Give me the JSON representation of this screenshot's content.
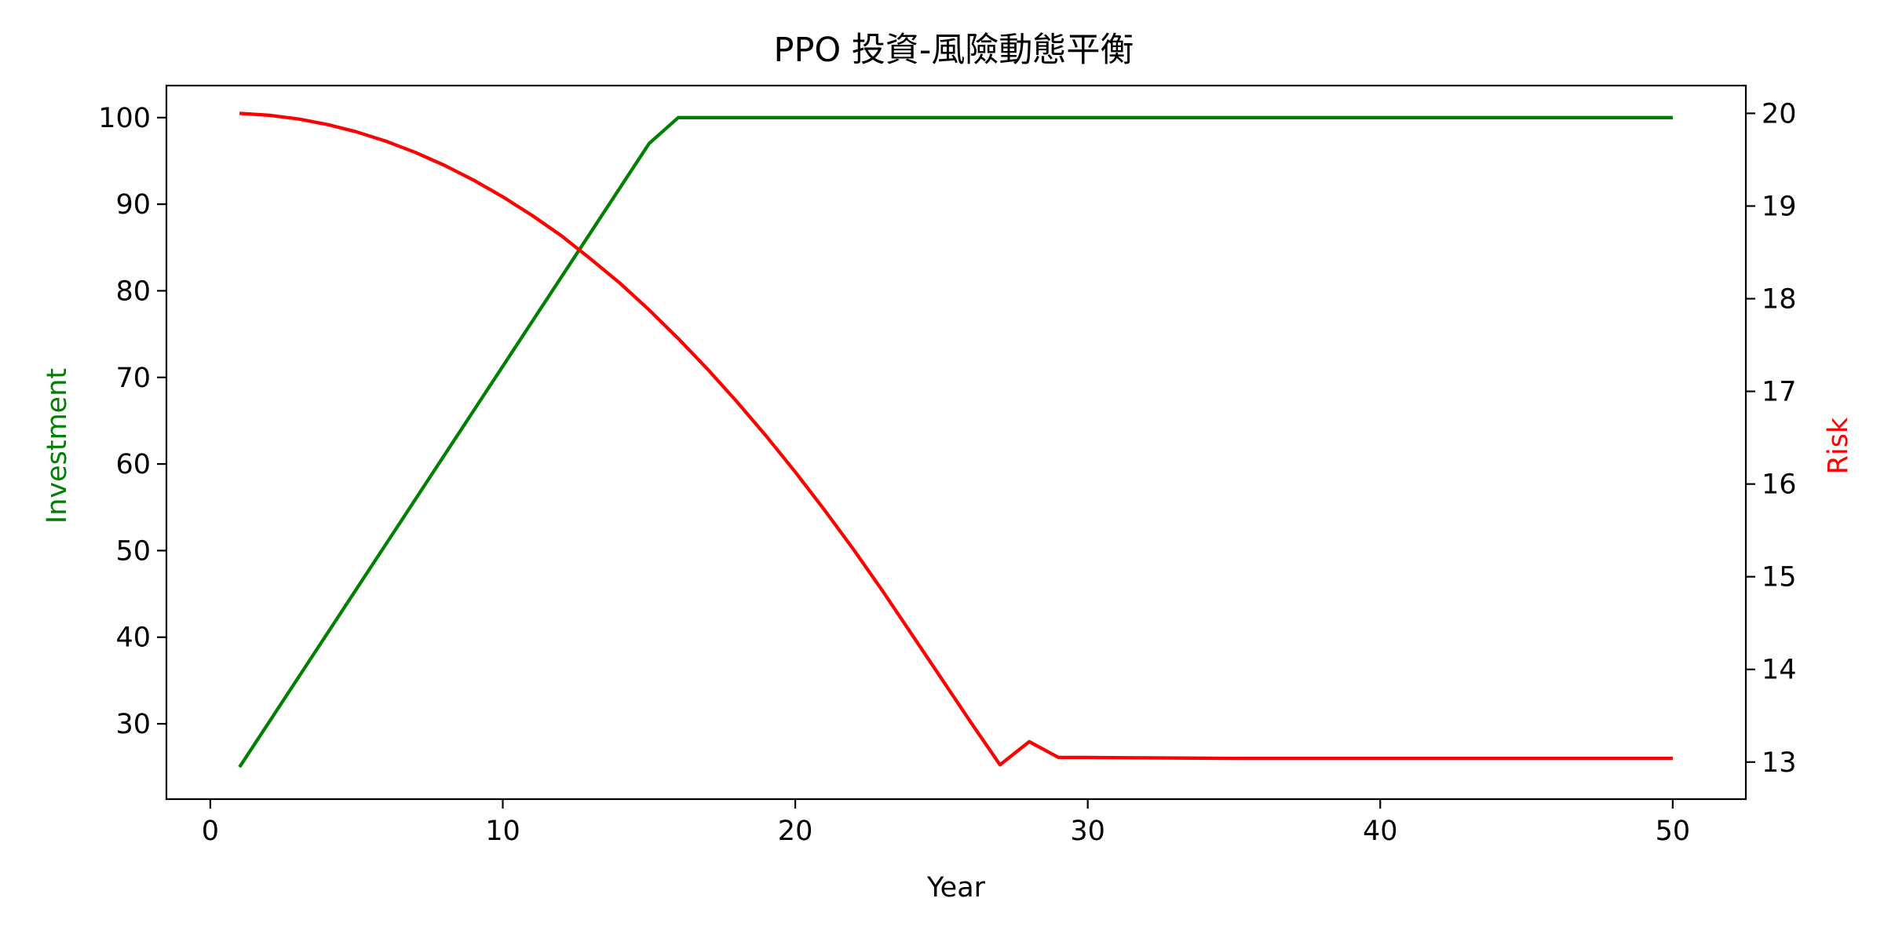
{
  "chart_data": {
    "type": "line",
    "title": "PPO 投資-風險動態平衡",
    "xlabel": "Year",
    "ylabel_left": "Investment",
    "ylabel_right": "Risk",
    "xlim": [
      -1.5,
      52.5
    ],
    "ylim_left": [
      21.3,
      103.7
    ],
    "ylim_right": [
      12.6,
      20.3
    ],
    "x_ticks": [
      0,
      10,
      20,
      30,
      40,
      50
    ],
    "y_left_ticks": [
      30,
      40,
      50,
      60,
      70,
      80,
      90,
      100
    ],
    "y_right_ticks": [
      13,
      14,
      15,
      16,
      17,
      18,
      19,
      20
    ],
    "grid": false,
    "legend": "none",
    "series": [
      {
        "axis": "left",
        "color": "#008000",
        "x": [
          1,
          15,
          16,
          50
        ],
        "values": [
          25.0,
          97.0,
          100.0,
          100.0
        ]
      },
      {
        "axis": "right",
        "color": "#ff0000",
        "x": [
          1,
          2,
          3,
          4,
          5,
          6,
          7,
          8,
          9,
          10,
          11,
          12,
          13,
          14,
          15,
          16,
          17,
          18,
          19,
          20,
          21,
          22,
          23,
          24,
          25,
          26,
          27,
          28,
          29,
          30,
          35,
          40,
          45,
          50
        ],
        "values": [
          20.0,
          19.98,
          19.94,
          19.88,
          19.8,
          19.7,
          19.58,
          19.44,
          19.28,
          19.1,
          18.9,
          18.68,
          18.43,
          18.17,
          17.88,
          17.57,
          17.24,
          16.89,
          16.52,
          16.13,
          15.72,
          15.29,
          14.84,
          14.37,
          13.9,
          13.43,
          12.97,
          13.22,
          13.05,
          13.05,
          13.04,
          13.04,
          13.04,
          13.04
        ]
      }
    ]
  }
}
